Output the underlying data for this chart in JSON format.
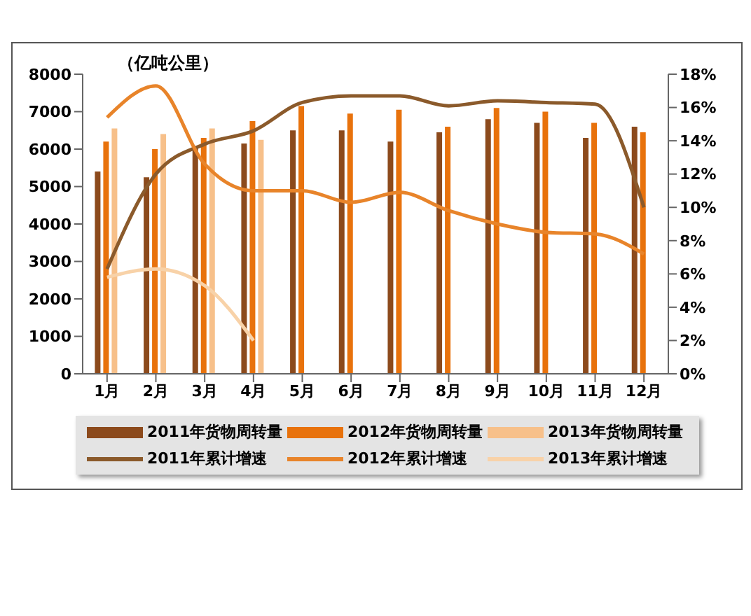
{
  "chart_data": {
    "type": "bar",
    "ylabel": "（亿吨公里）",
    "categories": [
      "1月",
      "2月",
      "3月",
      "4月",
      "5月",
      "6月",
      "7月",
      "8月",
      "9月",
      "10月",
      "11月",
      "12月"
    ],
    "series": [
      {
        "name": "2011年货物周转量",
        "color": "#8c4a1c",
        "values": [
          5400,
          5250,
          6050,
          6150,
          6500,
          6500,
          6200,
          6450,
          6800,
          6700,
          6300,
          6600
        ]
      },
      {
        "name": "2012年货物周转量",
        "color": "#e8720c",
        "values": [
          6200,
          6000,
          6300,
          6750,
          7150,
          6950,
          7050,
          6600,
          7100,
          7000,
          6700,
          6450
        ]
      },
      {
        "name": "2013年货物周转量",
        "color": "#f7c08a",
        "values": [
          6550,
          6400,
          6550,
          6250,
          null,
          null,
          null,
          null,
          null,
          null,
          null,
          null
        ]
      },
      {
        "name": "2011年累计增速",
        "type": "line",
        "axis": "y2",
        "color": "#8b5a2b",
        "values": [
          6.3,
          12.0,
          13.8,
          14.6,
          16.3,
          16.7,
          16.7,
          16.1,
          16.4,
          16.3,
          16.2,
          10.0
        ]
      },
      {
        "name": "2012年累计增速",
        "type": "line",
        "axis": "y2",
        "color": "#e8842a",
        "values": [
          15.4,
          17.3,
          12.6,
          11.0,
          11.0,
          10.3,
          10.9,
          9.8,
          9.0,
          8.5,
          8.4,
          7.2
        ]
      },
      {
        "name": "2013年累计增速",
        "type": "line",
        "axis": "y2",
        "color": "#f8d2a8",
        "values": [
          5.8,
          6.3,
          5.3,
          2.0,
          null,
          null,
          null,
          null,
          null,
          null,
          null,
          null
        ]
      }
    ],
    "ylim": [
      0,
      8000
    ],
    "yticks": [
      0,
      1000,
      2000,
      3000,
      4000,
      5000,
      6000,
      7000,
      8000
    ],
    "y2lim": [
      0,
      18
    ],
    "y2ticks": [
      {
        "value": 0,
        "label": "0%"
      },
      {
        "value": 2,
        "label": "2%"
      },
      {
        "value": 4,
        "label": "4%"
      },
      {
        "value": 6,
        "label": "6%"
      },
      {
        "value": 8,
        "label": "8%"
      },
      {
        "value": 10,
        "label": "10%"
      },
      {
        "value": 12,
        "label": "12%"
      },
      {
        "value": 14,
        "label": "14%"
      },
      {
        "value": 16,
        "label": "16%"
      },
      {
        "value": 18,
        "label": "18%"
      }
    ],
    "grid": false,
    "legend": "bottom",
    "marker": "none"
  }
}
